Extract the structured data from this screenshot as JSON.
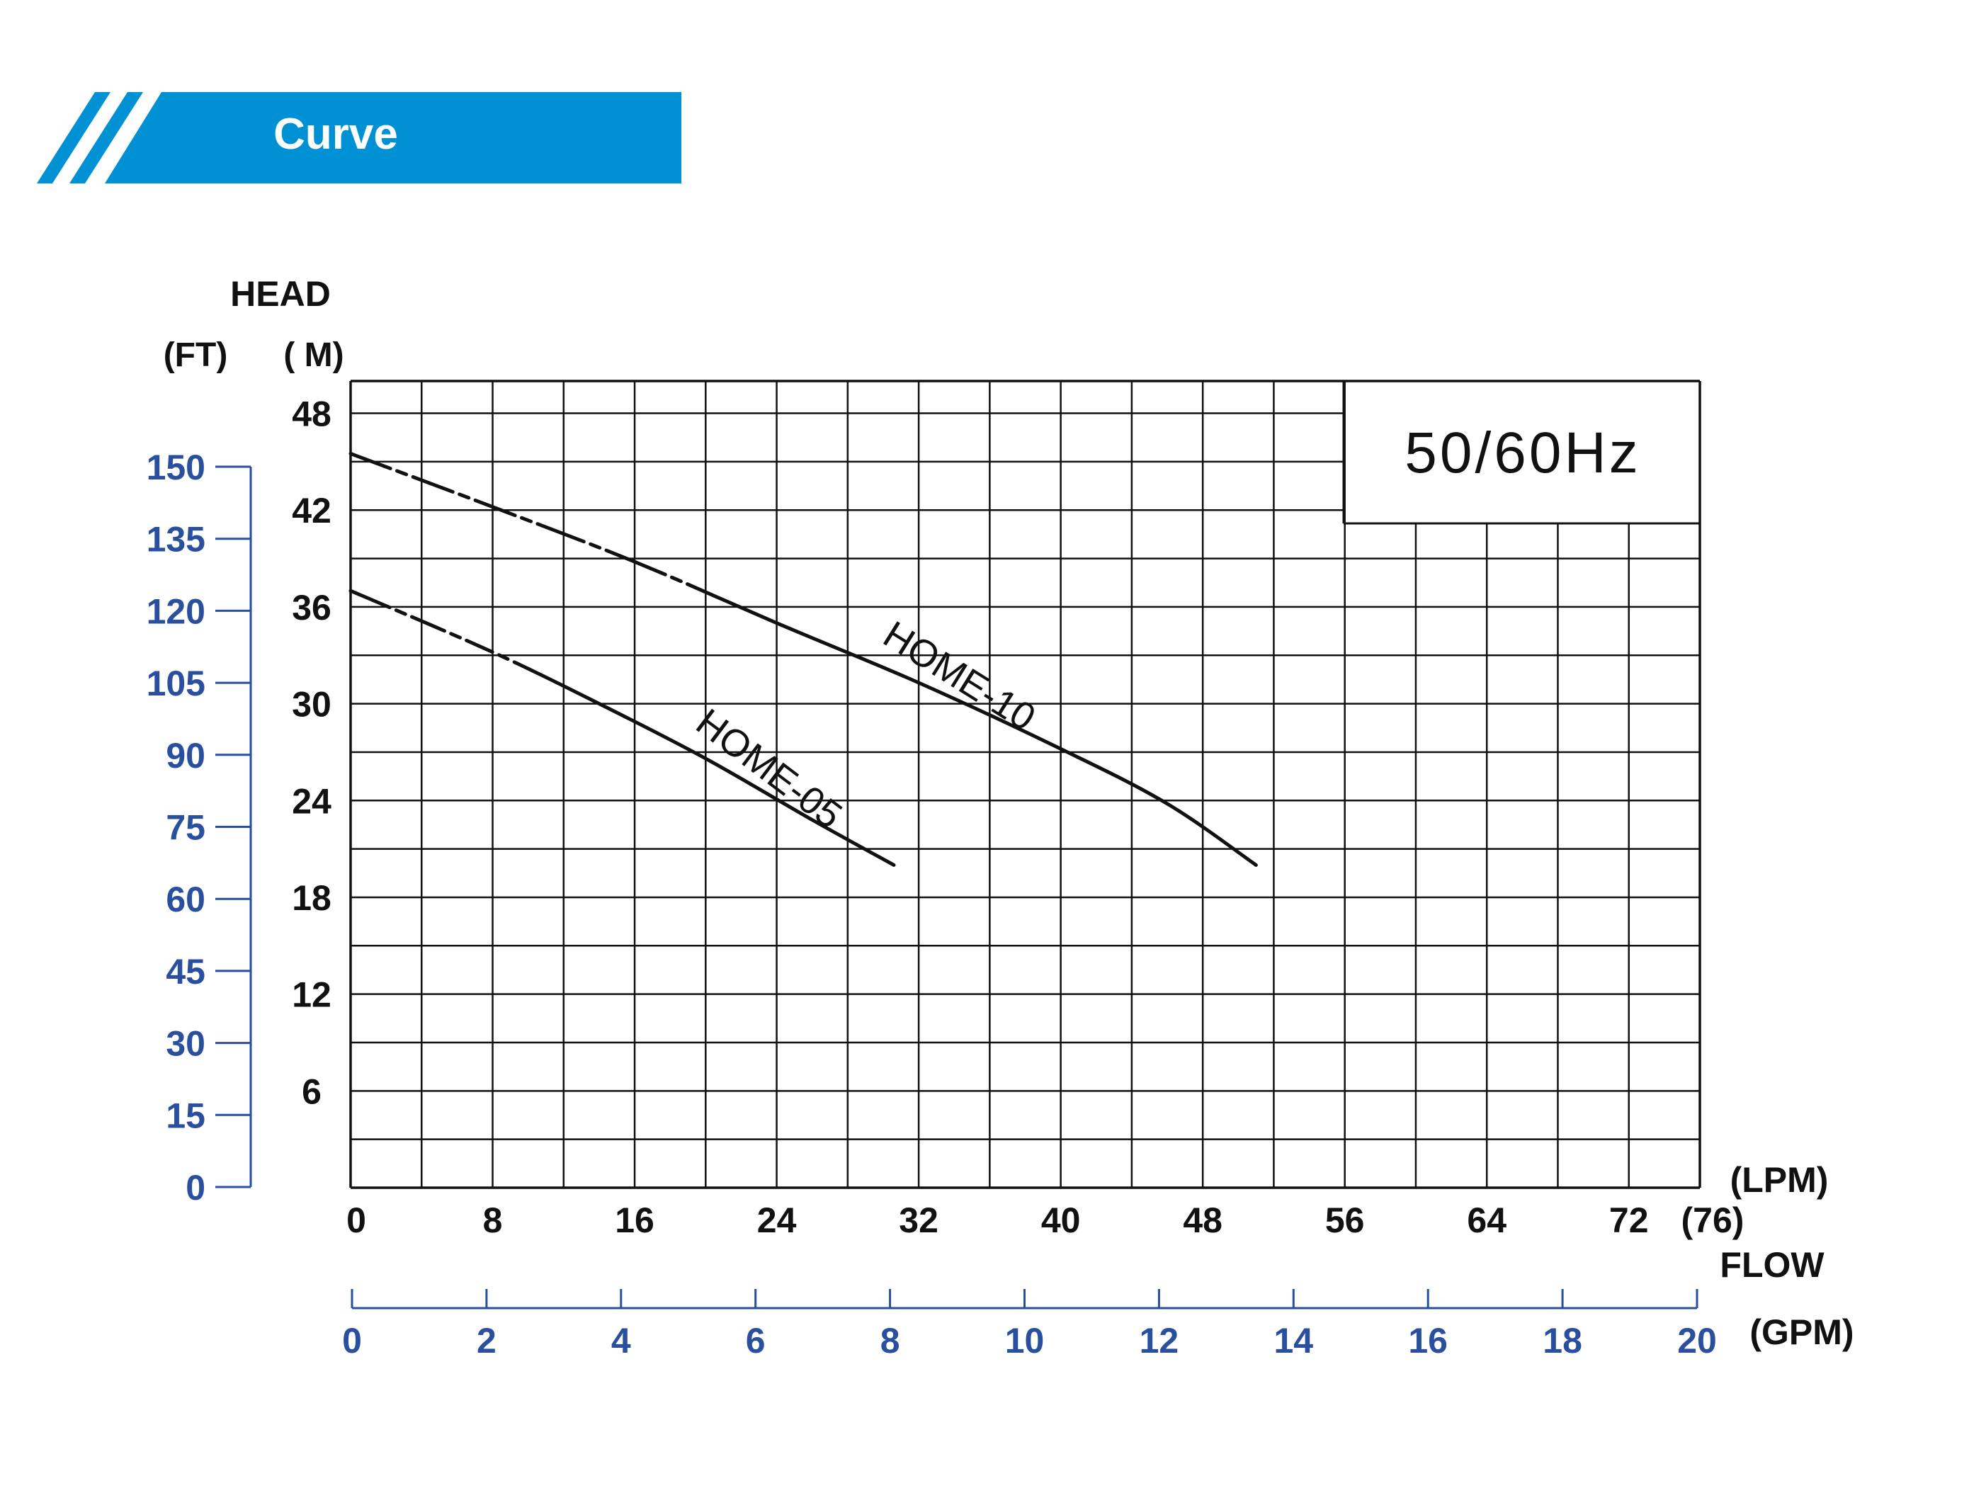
{
  "header": {
    "title": "Curve",
    "bar_color": "#0091d5"
  },
  "chart_data": {
    "type": "line",
    "title": "",
    "legend_box": "50/60Hz",
    "y_title": "HEAD",
    "y_unit_m": "( M)",
    "y_unit_ft": "(FT)",
    "x_title": "FLOW",
    "x_unit_lpm": "(LPM)",
    "x_unit_gpm": "(GPM)",
    "ylim_m": [
      0,
      50
    ],
    "ylim_ft": [
      0,
      150
    ],
    "xlim_lpm": [
      0,
      76
    ],
    "xlim_gpm": [
      0,
      20
    ],
    "y_ticks_m": [
      "6",
      "12",
      "18",
      "24",
      "30",
      "36",
      "42",
      "48"
    ],
    "y_ticks_ft": [
      "0",
      "15",
      "30",
      "45",
      "60",
      "75",
      "90",
      "105",
      "120",
      "135",
      "150"
    ],
    "x_ticks_lpm": [
      "0",
      "8",
      "16",
      "24",
      "32",
      "40",
      "48",
      "56",
      "64",
      "72",
      "(76)"
    ],
    "x_ticks_gpm": [
      "0",
      "2",
      "4",
      "6",
      "8",
      "10",
      "12",
      "14",
      "16",
      "18",
      "20"
    ],
    "grid": true,
    "axis_color_ft_gpm": "#2a4f9e",
    "series": [
      {
        "name": "HOME-10",
        "x_lpm": [
          0,
          8,
          16,
          24,
          32,
          40,
          46,
          51
        ],
        "y_m": [
          45.5,
          42.2,
          38.8,
          35.0,
          31.3,
          27.2,
          23.8,
          20.0
        ]
      },
      {
        "name": "HOME-05",
        "x_lpm": [
          0,
          8,
          14,
          20,
          26,
          30.6
        ],
        "y_m": [
          37.0,
          33.2,
          30.0,
          26.6,
          22.8,
          20.0
        ]
      }
    ]
  }
}
